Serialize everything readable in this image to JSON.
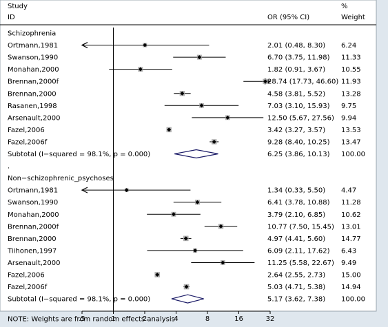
{
  "chart_data": {
    "type": "forest",
    "header": {
      "study_label_1": "Study",
      "study_label_2": "ID",
      "ci_label": "OR (95% CI)",
      "weight_label_1": "%",
      "weight_label_2": "Weight"
    },
    "x_scale": "log",
    "xlim": [
      0.5,
      32
    ],
    "x_ticks": [
      {
        "value": 0.5,
        "label": ".5"
      },
      {
        "value": 1,
        "label": "1"
      },
      {
        "value": 2,
        "label": "2"
      },
      {
        "value": 4,
        "label": "4"
      },
      {
        "value": 8,
        "label": "8"
      },
      {
        "value": 16,
        "label": "16"
      },
      {
        "value": 32,
        "label": "32"
      }
    ],
    "rows": [
      {
        "kind": "group",
        "label": "Schizophrenia"
      },
      {
        "kind": "study",
        "label": "Ortmann,1981",
        "or": 2.01,
        "lo": 0.48,
        "hi": 8.3,
        "ci_text": "2.01 (0.48, 8.30)",
        "weight": "6.24"
      },
      {
        "kind": "study",
        "label": "Swanson,1990",
        "or": 6.7,
        "lo": 3.75,
        "hi": 11.98,
        "ci_text": "6.70 (3.75, 11.98)",
        "weight": "11.33"
      },
      {
        "kind": "study",
        "label": "Monahan,2000",
        "or": 1.82,
        "lo": 0.91,
        "hi": 3.67,
        "ci_text": "1.82 (0.91, 3.67)",
        "weight": "10.55"
      },
      {
        "kind": "study",
        "label": "Brennan,2000f",
        "or": 28.74,
        "lo": 17.73,
        "hi": 46.6,
        "ci_text": "28.74 (17.73, 46.60)",
        "weight": "11.93"
      },
      {
        "kind": "study",
        "label": "Brennan,2000",
        "or": 4.58,
        "lo": 3.81,
        "hi": 5.52,
        "ci_text": "4.58 (3.81, 5.52)",
        "weight": "13.28"
      },
      {
        "kind": "study",
        "label": "Rasanen,1998",
        "or": 7.03,
        "lo": 3.1,
        "hi": 15.93,
        "ci_text": "7.03 (3.10, 15.93)",
        "weight": "9.75"
      },
      {
        "kind": "study",
        "label": "Arsenault,2000",
        "or": 12.5,
        "lo": 5.67,
        "hi": 27.56,
        "ci_text": "12.50 (5.67, 27.56)",
        "weight": "9.94"
      },
      {
        "kind": "study",
        "label": "Fazel,2006",
        "or": 3.42,
        "lo": 3.27,
        "hi": 3.57,
        "ci_text": "3.42 (3.27, 3.57)",
        "weight": "13.53"
      },
      {
        "kind": "study",
        "label": "Fazel,2006f",
        "or": 9.28,
        "lo": 8.4,
        "hi": 10.25,
        "ci_text": "9.28 (8.40, 10.25)",
        "weight": "13.47"
      },
      {
        "kind": "subtotal",
        "label": "Subtotal  (I−squared = 98.1%, p = 0.000)",
        "or": 6.25,
        "lo": 3.86,
        "hi": 10.13,
        "ci_text": "6.25 (3.86, 10.13)",
        "weight": "100.00"
      },
      {
        "kind": "spacer",
        "label": "."
      },
      {
        "kind": "group",
        "label": "Non−schizophrenic_psychoses"
      },
      {
        "kind": "study",
        "label": "Ortmann,1981",
        "or": 1.34,
        "lo": 0.33,
        "hi": 5.5,
        "ci_text": "1.34 (0.33, 5.50)",
        "weight": "4.47"
      },
      {
        "kind": "study",
        "label": "Swanson,1990",
        "or": 6.41,
        "lo": 3.78,
        "hi": 10.88,
        "ci_text": "6.41 (3.78, 10.88)",
        "weight": "11.28"
      },
      {
        "kind": "study",
        "label": "Monahan,2000",
        "or": 3.79,
        "lo": 2.1,
        "hi": 6.85,
        "ci_text": "3.79 (2.10, 6.85)",
        "weight": "10.62"
      },
      {
        "kind": "study",
        "label": "Brennan,2000f",
        "or": 10.77,
        "lo": 7.5,
        "hi": 15.45,
        "ci_text": "10.77 (7.50, 15.45)",
        "weight": "13.01"
      },
      {
        "kind": "study",
        "label": "Brennan,2000",
        "or": 4.97,
        "lo": 4.41,
        "hi": 5.6,
        "ci_text": "4.97 (4.41, 5.60)",
        "weight": "14.77"
      },
      {
        "kind": "study",
        "label": "Tiihonen,1997",
        "or": 6.09,
        "lo": 2.11,
        "hi": 17.62,
        "ci_text": "6.09 (2.11, 17.62)",
        "weight": "6.43"
      },
      {
        "kind": "study",
        "label": "Arsenault,2000",
        "or": 11.25,
        "lo": 5.58,
        "hi": 22.67,
        "ci_text": "11.25 (5.58, 22.67)",
        "weight": "9.49"
      },
      {
        "kind": "study",
        "label": "Fazel,2006",
        "or": 2.64,
        "lo": 2.55,
        "hi": 2.73,
        "ci_text": "2.64 (2.55, 2.73)",
        "weight": "15.00"
      },
      {
        "kind": "study",
        "label": "Fazel,2006f",
        "or": 5.03,
        "lo": 4.71,
        "hi": 5.38,
        "ci_text": "5.03 (4.71, 5.38)",
        "weight": "14.94"
      },
      {
        "kind": "subtotal",
        "label": "Subtotal  (I−squared = 98.1%, p = 0.000)",
        "or": 5.17,
        "lo": 3.62,
        "hi": 7.38,
        "ci_text": "5.17 (3.62, 7.38)",
        "weight": "100.00"
      }
    ],
    "note": "NOTE: Weights are from random effects analysis"
  },
  "colors": {
    "background": "#dfe7ee",
    "plot_background": "#ffffff",
    "marker_box": "#b0b0b0",
    "diamond": "#1a1a66",
    "line": "#000000"
  }
}
